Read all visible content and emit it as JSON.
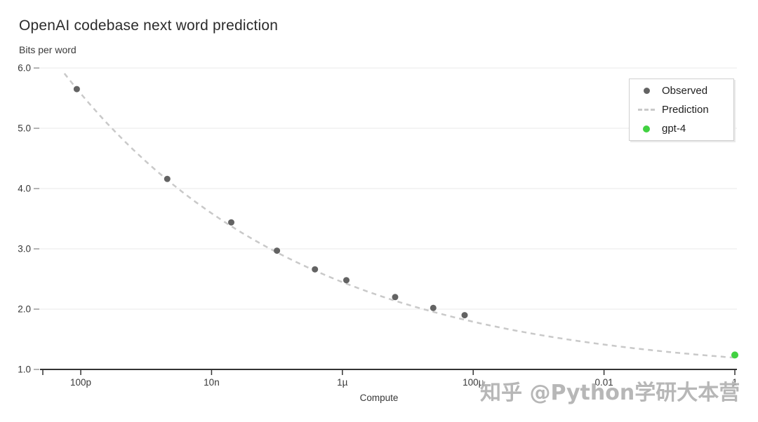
{
  "page": {
    "watermark": "知乎 @Python学研大本营"
  },
  "chart_data": {
    "type": "scatter",
    "title": "OpenAI codebase next word prediction",
    "ylabel": "Bits per word",
    "xlabel": "Compute",
    "x_scale": "log10",
    "xlim_log10": [
      -10.58,
      0
    ],
    "ylim": [
      1.0,
      6.0
    ],
    "grid": "horizontal-only",
    "legend_position": "top-right",
    "axis_color": "#333333",
    "gridline_color": "#ededed",
    "tick_label_color": "#383838",
    "x_ticks": [
      {
        "value": 1e-10,
        "label": "100p"
      },
      {
        "value": 1e-08,
        "label": "10n"
      },
      {
        "value": 1e-06,
        "label": "1µ"
      },
      {
        "value": 0.0001,
        "label": "100µ"
      },
      {
        "value": 0.01,
        "label": "0.01"
      },
      {
        "value": 1,
        "label": "1"
      }
    ],
    "y_ticks": [
      {
        "value": 1.0,
        "label": "1.0"
      },
      {
        "value": 2.0,
        "label": "2.0"
      },
      {
        "value": 3.0,
        "label": "3.0"
      },
      {
        "value": 4.0,
        "label": "4.0"
      },
      {
        "value": 5.0,
        "label": "5.0"
      },
      {
        "value": 6.0,
        "label": "6.0"
      }
    ],
    "series": [
      {
        "name": "Observed",
        "type": "scatter",
        "color": "#636363",
        "marker_radius": 4.5,
        "points": [
          {
            "compute": 8.7e-11,
            "bits": 5.65
          },
          {
            "compute": 2.1e-09,
            "bits": 4.16
          },
          {
            "compute": 2e-08,
            "bits": 3.44
          },
          {
            "compute": 1e-07,
            "bits": 2.97
          },
          {
            "compute": 3.8e-07,
            "bits": 2.66
          },
          {
            "compute": 1.15e-06,
            "bits": 2.48
          },
          {
            "compute": 6.4e-06,
            "bits": 2.2
          },
          {
            "compute": 2.45e-05,
            "bits": 2.02
          },
          {
            "compute": 7.4e-05,
            "bits": 1.9
          }
        ]
      },
      {
        "name": "Prediction",
        "type": "dashed_curve",
        "color": "#c9c9c9",
        "fit_power_law": {
          "a": 0.295,
          "b": -0.12,
          "c": 0.9
        },
        "log10_domain": [
          -10.25,
          0
        ],
        "dash": [
          7,
          6
        ],
        "stroke_width": 2.5
      },
      {
        "name": "gpt-4",
        "type": "scatter",
        "color": "#41d141",
        "marker_radius": 5,
        "points": [
          {
            "compute": 1,
            "bits": 1.24
          }
        ]
      }
    ]
  }
}
